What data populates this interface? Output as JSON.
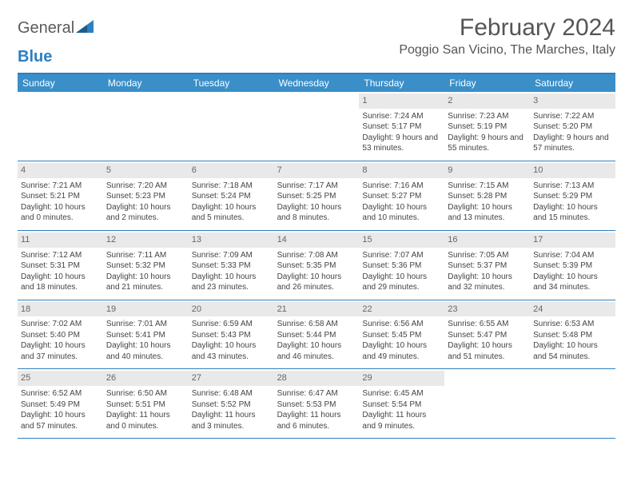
{
  "logo": {
    "text1": "General",
    "text2": "Blue"
  },
  "title": "February 2024",
  "location": "Poggio San Vicino, The Marches, Italy",
  "headers": [
    "Sunday",
    "Monday",
    "Tuesday",
    "Wednesday",
    "Thursday",
    "Friday",
    "Saturday"
  ],
  "colors": {
    "accent": "#2d7fc1",
    "header_bg": "#3a8fc9",
    "header_text": "#ffffff",
    "daynum_bg": "#e9e9e9",
    "text": "#444444"
  },
  "weeks": [
    [
      {
        "day": "",
        "lines": []
      },
      {
        "day": "",
        "lines": []
      },
      {
        "day": "",
        "lines": []
      },
      {
        "day": "",
        "lines": []
      },
      {
        "day": "1",
        "lines": [
          "Sunrise: 7:24 AM",
          "Sunset: 5:17 PM",
          "Daylight: 9 hours and 53 minutes."
        ]
      },
      {
        "day": "2",
        "lines": [
          "Sunrise: 7:23 AM",
          "Sunset: 5:19 PM",
          "Daylight: 9 hours and 55 minutes."
        ]
      },
      {
        "day": "3",
        "lines": [
          "Sunrise: 7:22 AM",
          "Sunset: 5:20 PM",
          "Daylight: 9 hours and 57 minutes."
        ]
      }
    ],
    [
      {
        "day": "4",
        "lines": [
          "Sunrise: 7:21 AM",
          "Sunset: 5:21 PM",
          "Daylight: 10 hours and 0 minutes."
        ]
      },
      {
        "day": "5",
        "lines": [
          "Sunrise: 7:20 AM",
          "Sunset: 5:23 PM",
          "Daylight: 10 hours and 2 minutes."
        ]
      },
      {
        "day": "6",
        "lines": [
          "Sunrise: 7:18 AM",
          "Sunset: 5:24 PM",
          "Daylight: 10 hours and 5 minutes."
        ]
      },
      {
        "day": "7",
        "lines": [
          "Sunrise: 7:17 AM",
          "Sunset: 5:25 PM",
          "Daylight: 10 hours and 8 minutes."
        ]
      },
      {
        "day": "8",
        "lines": [
          "Sunrise: 7:16 AM",
          "Sunset: 5:27 PM",
          "Daylight: 10 hours and 10 minutes."
        ]
      },
      {
        "day": "9",
        "lines": [
          "Sunrise: 7:15 AM",
          "Sunset: 5:28 PM",
          "Daylight: 10 hours and 13 minutes."
        ]
      },
      {
        "day": "10",
        "lines": [
          "Sunrise: 7:13 AM",
          "Sunset: 5:29 PM",
          "Daylight: 10 hours and 15 minutes."
        ]
      }
    ],
    [
      {
        "day": "11",
        "lines": [
          "Sunrise: 7:12 AM",
          "Sunset: 5:31 PM",
          "Daylight: 10 hours and 18 minutes."
        ]
      },
      {
        "day": "12",
        "lines": [
          "Sunrise: 7:11 AM",
          "Sunset: 5:32 PM",
          "Daylight: 10 hours and 21 minutes."
        ]
      },
      {
        "day": "13",
        "lines": [
          "Sunrise: 7:09 AM",
          "Sunset: 5:33 PM",
          "Daylight: 10 hours and 23 minutes."
        ]
      },
      {
        "day": "14",
        "lines": [
          "Sunrise: 7:08 AM",
          "Sunset: 5:35 PM",
          "Daylight: 10 hours and 26 minutes."
        ]
      },
      {
        "day": "15",
        "lines": [
          "Sunrise: 7:07 AM",
          "Sunset: 5:36 PM",
          "Daylight: 10 hours and 29 minutes."
        ]
      },
      {
        "day": "16",
        "lines": [
          "Sunrise: 7:05 AM",
          "Sunset: 5:37 PM",
          "Daylight: 10 hours and 32 minutes."
        ]
      },
      {
        "day": "17",
        "lines": [
          "Sunrise: 7:04 AM",
          "Sunset: 5:39 PM",
          "Daylight: 10 hours and 34 minutes."
        ]
      }
    ],
    [
      {
        "day": "18",
        "lines": [
          "Sunrise: 7:02 AM",
          "Sunset: 5:40 PM",
          "Daylight: 10 hours and 37 minutes."
        ]
      },
      {
        "day": "19",
        "lines": [
          "Sunrise: 7:01 AM",
          "Sunset: 5:41 PM",
          "Daylight: 10 hours and 40 minutes."
        ]
      },
      {
        "day": "20",
        "lines": [
          "Sunrise: 6:59 AM",
          "Sunset: 5:43 PM",
          "Daylight: 10 hours and 43 minutes."
        ]
      },
      {
        "day": "21",
        "lines": [
          "Sunrise: 6:58 AM",
          "Sunset: 5:44 PM",
          "Daylight: 10 hours and 46 minutes."
        ]
      },
      {
        "day": "22",
        "lines": [
          "Sunrise: 6:56 AM",
          "Sunset: 5:45 PM",
          "Daylight: 10 hours and 49 minutes."
        ]
      },
      {
        "day": "23",
        "lines": [
          "Sunrise: 6:55 AM",
          "Sunset: 5:47 PM",
          "Daylight: 10 hours and 51 minutes."
        ]
      },
      {
        "day": "24",
        "lines": [
          "Sunrise: 6:53 AM",
          "Sunset: 5:48 PM",
          "Daylight: 10 hours and 54 minutes."
        ]
      }
    ],
    [
      {
        "day": "25",
        "lines": [
          "Sunrise: 6:52 AM",
          "Sunset: 5:49 PM",
          "Daylight: 10 hours and 57 minutes."
        ]
      },
      {
        "day": "26",
        "lines": [
          "Sunrise: 6:50 AM",
          "Sunset: 5:51 PM",
          "Daylight: 11 hours and 0 minutes."
        ]
      },
      {
        "day": "27",
        "lines": [
          "Sunrise: 6:48 AM",
          "Sunset: 5:52 PM",
          "Daylight: 11 hours and 3 minutes."
        ]
      },
      {
        "day": "28",
        "lines": [
          "Sunrise: 6:47 AM",
          "Sunset: 5:53 PM",
          "Daylight: 11 hours and 6 minutes."
        ]
      },
      {
        "day": "29",
        "lines": [
          "Sunrise: 6:45 AM",
          "Sunset: 5:54 PM",
          "Daylight: 11 hours and 9 minutes."
        ]
      },
      {
        "day": "",
        "lines": []
      },
      {
        "day": "",
        "lines": []
      }
    ]
  ]
}
